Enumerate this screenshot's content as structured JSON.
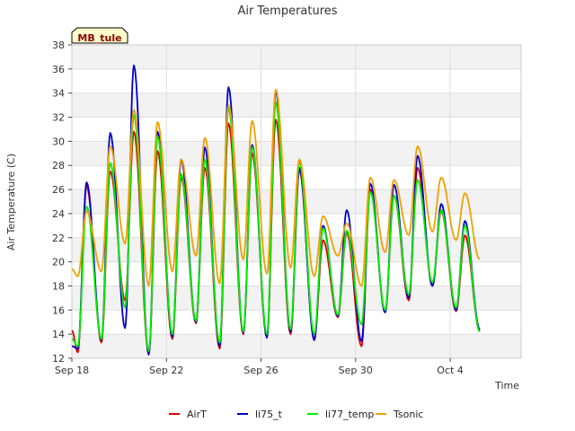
{
  "chart_data": {
    "type": "line",
    "title": "Air Temperatures",
    "xlabel": "Time",
    "ylabel": "Air Temperature (C)",
    "site_tag": "MB_tule",
    "ylim": [
      12,
      38
    ],
    "yticks": [
      12,
      14,
      16,
      18,
      20,
      22,
      24,
      26,
      28,
      30,
      32,
      34,
      36,
      38
    ],
    "xlim": [
      "2023-09-18",
      "2023-10-07"
    ],
    "xticks": [
      {
        "label": "Sep 18",
        "x": "2023-09-18"
      },
      {
        "label": "Sep 22",
        "x": "2023-09-22"
      },
      {
        "label": "Sep 26",
        "x": "2023-09-26"
      },
      {
        "label": "Sep 30",
        "x": "2023-09-30"
      },
      {
        "label": "Oct 4",
        "x": "2023-10-04"
      }
    ],
    "grid": true,
    "legend_position": "bottom",
    "series": [
      {
        "name": "AirT",
        "color": "#dd0000",
        "points": [
          [
            "2023-09-18 00:00",
            14.3
          ],
          [
            "2023-09-18 06:00",
            12.5
          ],
          [
            "2023-09-18 15:00",
            26.3
          ],
          [
            "2023-09-19 06:00",
            13.3
          ],
          [
            "2023-09-19 15:00",
            27.5
          ],
          [
            "2023-09-20 06:00",
            16.8
          ],
          [
            "2023-09-20 15:00",
            30.8
          ],
          [
            "2023-09-21 06:00",
            12.4
          ],
          [
            "2023-09-21 15:00",
            29.2
          ],
          [
            "2023-09-22 06:00",
            13.6
          ],
          [
            "2023-09-22 15:00",
            27.0
          ],
          [
            "2023-09-23 06:00",
            14.9
          ],
          [
            "2023-09-23 15:00",
            27.8
          ],
          [
            "2023-09-24 06:00",
            12.8
          ],
          [
            "2023-09-24 15:00",
            31.5
          ],
          [
            "2023-09-25 06:00",
            14.0
          ],
          [
            "2023-09-25 15:00",
            29.0
          ],
          [
            "2023-09-26 06:00",
            13.8
          ],
          [
            "2023-09-26 15:00",
            31.8
          ],
          [
            "2023-09-27 06:00",
            14.0
          ],
          [
            "2023-09-27 15:00",
            27.6
          ],
          [
            "2023-09-28 06:00",
            13.6
          ],
          [
            "2023-09-28 15:00",
            21.8
          ],
          [
            "2023-09-29 06:00",
            15.4
          ],
          [
            "2023-09-29 15:00",
            22.4
          ],
          [
            "2023-09-30 06:00",
            13.0
          ],
          [
            "2023-09-30 15:00",
            26.0
          ],
          [
            "2023-10-01 06:00",
            15.8
          ],
          [
            "2023-10-01 15:00",
            25.5
          ],
          [
            "2023-10-02 06:00",
            16.8
          ],
          [
            "2023-10-02 15:00",
            27.8
          ],
          [
            "2023-10-03 06:00",
            18.0
          ],
          [
            "2023-10-03 15:00",
            24.2
          ],
          [
            "2023-10-04 06:00",
            15.9
          ],
          [
            "2023-10-04 15:00",
            22.2
          ],
          [
            "2023-10-05 06:00",
            14.3
          ]
        ]
      },
      {
        "name": "li75_t",
        "color": "#0000cc",
        "points": [
          [
            "2023-09-18 00:00",
            13.0
          ],
          [
            "2023-09-18 06:00",
            12.8
          ],
          [
            "2023-09-18 15:00",
            26.6
          ],
          [
            "2023-09-19 06:00",
            13.5
          ],
          [
            "2023-09-19 15:00",
            30.7
          ],
          [
            "2023-09-20 06:00",
            14.5
          ],
          [
            "2023-09-20 15:00",
            36.3
          ],
          [
            "2023-09-21 06:00",
            12.3
          ],
          [
            "2023-09-21 15:00",
            30.8
          ],
          [
            "2023-09-22 06:00",
            13.8
          ],
          [
            "2023-09-22 15:00",
            28.5
          ],
          [
            "2023-09-23 06:00",
            15.0
          ],
          [
            "2023-09-23 15:00",
            29.5
          ],
          [
            "2023-09-24 06:00",
            13.0
          ],
          [
            "2023-09-24 15:00",
            34.5
          ],
          [
            "2023-09-25 06:00",
            14.1
          ],
          [
            "2023-09-25 15:00",
            29.7
          ],
          [
            "2023-09-26 06:00",
            13.7
          ],
          [
            "2023-09-26 15:00",
            34.2
          ],
          [
            "2023-09-27 06:00",
            14.2
          ],
          [
            "2023-09-27 15:00",
            27.8
          ],
          [
            "2023-09-28 06:00",
            13.5
          ],
          [
            "2023-09-28 15:00",
            23.0
          ],
          [
            "2023-09-29 06:00",
            15.5
          ],
          [
            "2023-09-29 15:00",
            24.3
          ],
          [
            "2023-09-30 06:00",
            13.4
          ],
          [
            "2023-09-30 15:00",
            26.5
          ],
          [
            "2023-10-01 06:00",
            15.8
          ],
          [
            "2023-10-01 15:00",
            26.4
          ],
          [
            "2023-10-02 06:00",
            17.0
          ],
          [
            "2023-10-02 15:00",
            28.8
          ],
          [
            "2023-10-03 06:00",
            18.0
          ],
          [
            "2023-10-03 15:00",
            24.8
          ],
          [
            "2023-10-04 06:00",
            16.0
          ],
          [
            "2023-10-04 15:00",
            23.4
          ],
          [
            "2023-10-05 06:00",
            14.4
          ]
        ]
      },
      {
        "name": "li77_temp",
        "color": "#00ee00",
        "points": [
          [
            "2023-09-18 00:00",
            13.6
          ],
          [
            "2023-09-18 06:00",
            13.0
          ],
          [
            "2023-09-18 15:00",
            24.6
          ],
          [
            "2023-09-19 06:00",
            13.6
          ],
          [
            "2023-09-19 15:00",
            28.2
          ],
          [
            "2023-09-20 06:00",
            16.2
          ],
          [
            "2023-09-20 15:00",
            32.2
          ],
          [
            "2023-09-21 06:00",
            12.6
          ],
          [
            "2023-09-21 15:00",
            30.4
          ],
          [
            "2023-09-22 06:00",
            14.0
          ],
          [
            "2023-09-22 15:00",
            27.3
          ],
          [
            "2023-09-23 06:00",
            15.1
          ],
          [
            "2023-09-23 15:00",
            28.5
          ],
          [
            "2023-09-24 06:00",
            13.3
          ],
          [
            "2023-09-24 15:00",
            32.8
          ],
          [
            "2023-09-25 06:00",
            14.2
          ],
          [
            "2023-09-25 15:00",
            29.5
          ],
          [
            "2023-09-26 06:00",
            14.0
          ],
          [
            "2023-09-26 15:00",
            33.2
          ],
          [
            "2023-09-27 06:00",
            14.4
          ],
          [
            "2023-09-27 15:00",
            28.3
          ],
          [
            "2023-09-28 06:00",
            14.0
          ],
          [
            "2023-09-28 15:00",
            22.8
          ],
          [
            "2023-09-29 06:00",
            15.6
          ],
          [
            "2023-09-29 15:00",
            22.6
          ],
          [
            "2023-09-30 06:00",
            14.8
          ],
          [
            "2023-09-30 15:00",
            25.8
          ],
          [
            "2023-10-01 06:00",
            16.0
          ],
          [
            "2023-10-01 15:00",
            25.5
          ],
          [
            "2023-10-02 06:00",
            17.3
          ],
          [
            "2023-10-02 15:00",
            26.8
          ],
          [
            "2023-10-03 06:00",
            18.3
          ],
          [
            "2023-10-03 15:00",
            24.3
          ],
          [
            "2023-10-04 06:00",
            16.2
          ],
          [
            "2023-10-04 15:00",
            23.0
          ],
          [
            "2023-10-05 06:00",
            14.2
          ]
        ]
      },
      {
        "name": "Tsonic",
        "color": "#f0a000",
        "points": [
          [
            "2023-09-18 00:00",
            19.4
          ],
          [
            "2023-09-18 06:00",
            18.8
          ],
          [
            "2023-09-18 15:00",
            24.2
          ],
          [
            "2023-09-19 06:00",
            19.2
          ],
          [
            "2023-09-19 15:00",
            29.6
          ],
          [
            "2023-09-20 06:00",
            21.5
          ],
          [
            "2023-09-20 15:00",
            32.6
          ],
          [
            "2023-09-21 06:00",
            18.0
          ],
          [
            "2023-09-21 15:00",
            31.6
          ],
          [
            "2023-09-22 06:00",
            19.2
          ],
          [
            "2023-09-22 15:00",
            28.5
          ],
          [
            "2023-09-23 06:00",
            20.5
          ],
          [
            "2023-09-23 15:00",
            30.3
          ],
          [
            "2023-09-24 06:00",
            18.2
          ],
          [
            "2023-09-24 15:00",
            33.0
          ],
          [
            "2023-09-25 06:00",
            20.2
          ],
          [
            "2023-09-25 15:00",
            31.7
          ],
          [
            "2023-09-26 06:00",
            19.0
          ],
          [
            "2023-09-26 15:00",
            34.3
          ],
          [
            "2023-09-27 06:00",
            19.5
          ],
          [
            "2023-09-27 15:00",
            28.5
          ],
          [
            "2023-09-28 06:00",
            18.8
          ],
          [
            "2023-09-28 15:00",
            23.8
          ],
          [
            "2023-09-29 06:00",
            20.5
          ],
          [
            "2023-09-29 15:00",
            23.2
          ],
          [
            "2023-09-30 06:00",
            18.0
          ],
          [
            "2023-09-30 15:00",
            27.0
          ],
          [
            "2023-10-01 06:00",
            20.8
          ],
          [
            "2023-10-01 15:00",
            26.8
          ],
          [
            "2023-10-02 06:00",
            22.2
          ],
          [
            "2023-10-02 15:00",
            29.6
          ],
          [
            "2023-10-03 06:00",
            22.5
          ],
          [
            "2023-10-03 15:00",
            27.0
          ],
          [
            "2023-10-04 06:00",
            21.8
          ],
          [
            "2023-10-04 15:00",
            25.7
          ],
          [
            "2023-10-05 06:00",
            20.2
          ]
        ]
      }
    ]
  }
}
